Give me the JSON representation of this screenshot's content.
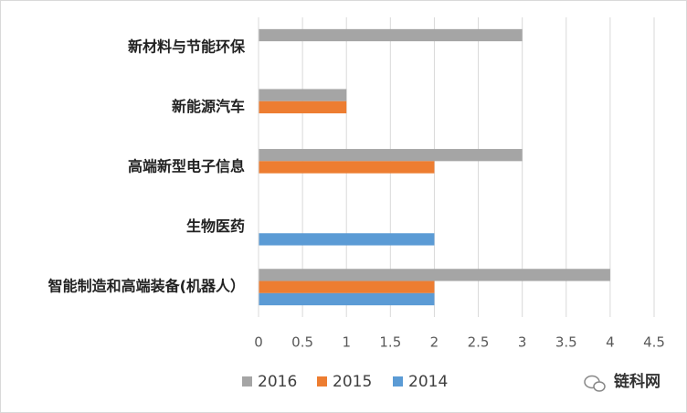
{
  "chart_data": {
    "type": "bar",
    "orientation": "horizontal",
    "categories": [
      "新材料与节能环保",
      "新能源汽车",
      "高端新型电子信息",
      "生物医药",
      "智能制造和高端装备(机器人）"
    ],
    "series": [
      {
        "name": "2016",
        "color": "#a5a5a5",
        "values": [
          3,
          1,
          3,
          null,
          4
        ]
      },
      {
        "name": "2015",
        "color": "#ed7d31",
        "values": [
          null,
          1,
          2,
          null,
          2
        ]
      },
      {
        "name": "2014",
        "color": "#5b9bd5",
        "values": [
          null,
          null,
          null,
          2,
          2
        ]
      }
    ],
    "xlim": [
      0,
      4.5
    ],
    "xticks": [
      0,
      0.5,
      1,
      1.5,
      2,
      2.5,
      3,
      3.5,
      4,
      4.5
    ],
    "grid": true,
    "legend": "bottom",
    "watermark": "链科网"
  }
}
